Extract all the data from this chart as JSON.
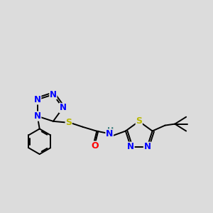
{
  "bg_color": "#dcdcdc",
  "atom_colors": {
    "N": "#0000ff",
    "S": "#b8b800",
    "O": "#ff0000",
    "C": "#000000",
    "H": "#408080"
  },
  "bond_color": "#000000",
  "figsize": [
    3.0,
    3.0
  ],
  "dpi": 100
}
